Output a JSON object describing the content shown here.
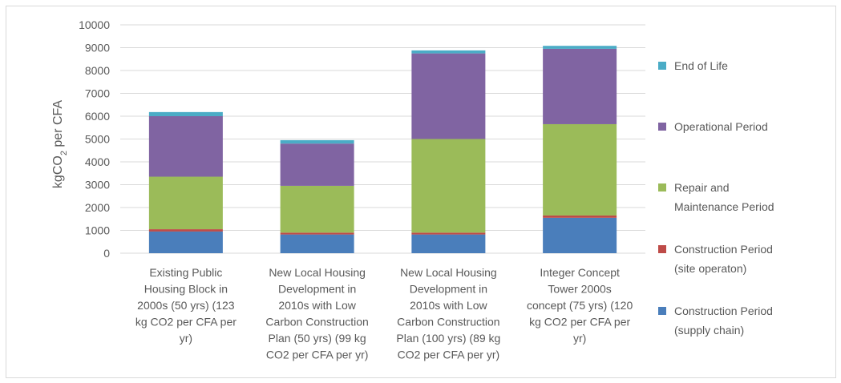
{
  "chart_data": {
    "type": "bar",
    "stacked": true,
    "ylabel_parts": [
      "kgCO",
      "2",
      " per CFA"
    ],
    "ylim": [
      0,
      10000
    ],
    "yticks": [
      0,
      1000,
      2000,
      3000,
      4000,
      5000,
      6000,
      7000,
      8000,
      9000,
      10000
    ],
    "grid": true,
    "legend_position": "right",
    "categories": [
      [
        "Existing Public",
        "Housing Block in",
        "2000s (50 yrs) (123",
        "kg CO2 per CFA per",
        "yr)"
      ],
      [
        "New Local Housing",
        "Development in",
        "2010s with Low",
        "Carbon Construction",
        "Plan (50 yrs) (99 kg",
        "CO2 per CFA per yr)"
      ],
      [
        "New Local Housing",
        "Development in",
        "2010s with Low",
        "Carbon Construction",
        "Plan (100 yrs) (89 kg",
        "CO2 per CFA per yr)"
      ],
      [
        "Integer Concept",
        "Tower 2000s",
        "concept (75 yrs) (120",
        "kg CO2 per CFA per",
        "yr)"
      ]
    ],
    "series": [
      {
        "name": [
          "Construction Period",
          "(supply chain)"
        ],
        "color": "#4a7ebb",
        "values": [
          950,
          820,
          820,
          1550
        ]
      },
      {
        "name": [
          "Construction Period",
          "(site operaton)"
        ],
        "color": "#be4b48",
        "values": [
          100,
          80,
          80,
          100
        ]
      },
      {
        "name": [
          "Repair and",
          "Maintenance Period"
        ],
        "color": "#9bbb59",
        "values": [
          2300,
          2050,
          4100,
          4000
        ]
      },
      {
        "name": [
          "Operational Period"
        ],
        "color": "#8064a2",
        "values": [
          2650,
          1850,
          3750,
          3300
        ]
      },
      {
        "name": [
          "End of Life"
        ],
        "color": "#4bacc6",
        "values": [
          180,
          150,
          130,
          130
        ]
      }
    ]
  }
}
